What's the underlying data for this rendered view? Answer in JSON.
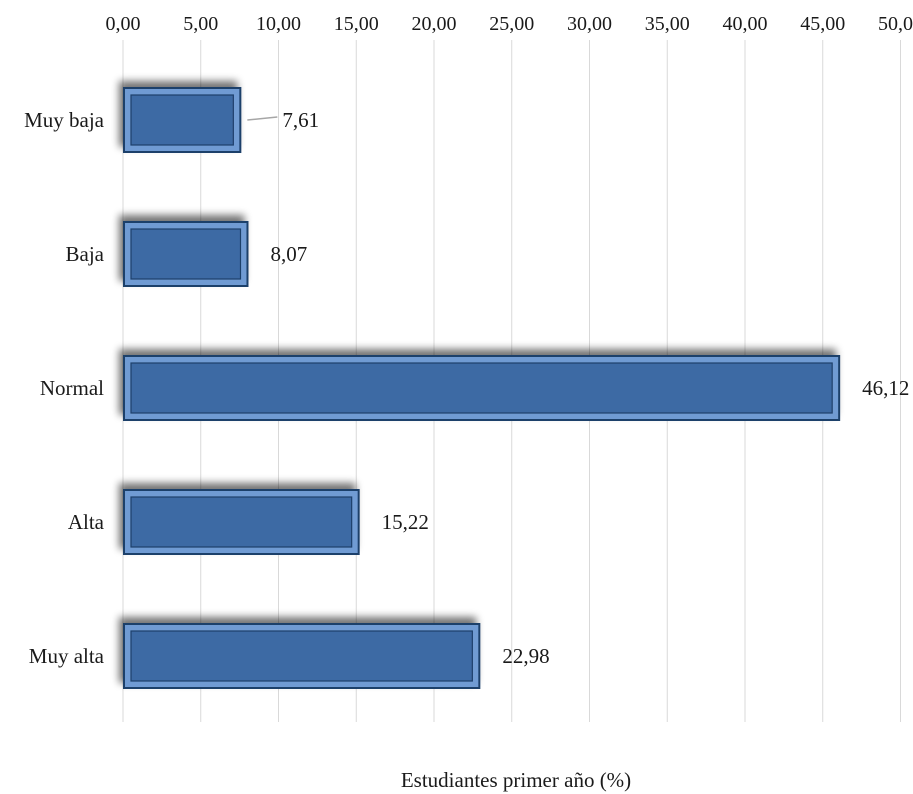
{
  "chart_data": {
    "type": "bar",
    "orientation": "horizontal",
    "categories": [
      "Muy baja",
      "Baja",
      "Normal",
      "Alta",
      "Muy alta"
    ],
    "values": [
      7.61,
      8.07,
      46.12,
      15.22,
      22.98
    ],
    "value_labels": [
      "7,61",
      "8,07",
      "46,12",
      "15,22",
      "22,98"
    ],
    "xlabel": "Estudiantes primer año (%)",
    "ylabel": "",
    "x_ticks": [
      0,
      5,
      10,
      15,
      20,
      25,
      30,
      35,
      40,
      45,
      50
    ],
    "x_tick_labels": [
      "0,00",
      "5,00",
      "10,00",
      "15,00",
      "20,00",
      "25,00",
      "30,00",
      "35,00",
      "40,00",
      "45,00",
      "50,00"
    ],
    "x_axis_position": "top",
    "grid": true,
    "legend": "none",
    "colors": {
      "bar": "#3e6aa4",
      "bar_edge": "#1f3f6b",
      "bar_highlight": "#6f9bd3",
      "grid": "#d9d9d9",
      "shadow": "#8a8a8a"
    }
  }
}
